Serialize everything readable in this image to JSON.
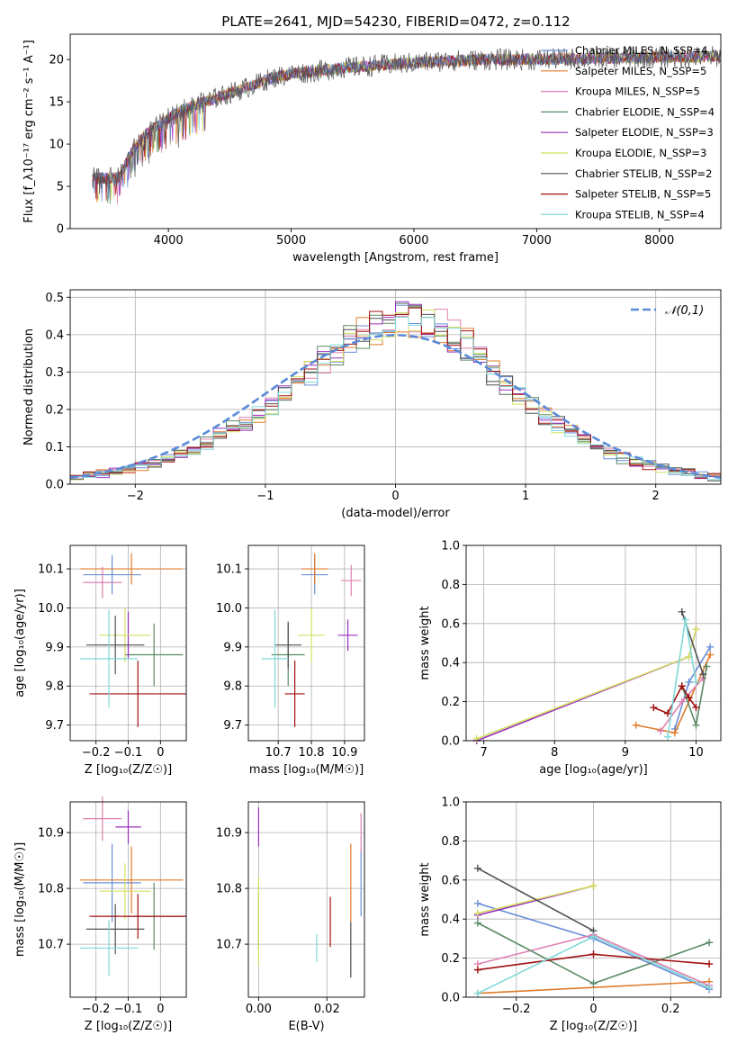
{
  "figure": {
    "title": "PLATE=2641, MJD=54230, FIBERID=0472, z=0.112"
  },
  "colors": {
    "chabrier_miles": "#6a8fd8",
    "salpeter_miles": "#e07b2a",
    "kroupa_miles": "#e080b0",
    "chabrier_elodie": "#5a8a64",
    "salpeter_elodie": "#9a30c0",
    "kroupa_elodie": "#d4e060",
    "chabrier_stelib": "#505050",
    "salpeter_stelib": "#a01010",
    "kroupa_stelib": "#80d8d8",
    "normal_curve": "#5a8ad8",
    "grid": "#b0b0b0"
  },
  "chart_data": [
    {
      "id": "spectrum",
      "type": "line",
      "title": "PLATE=2641, MJD=54230, FIBERID=0472, z=0.112",
      "xlabel": "wavelength [Angstrom, rest frame]",
      "ylabel": "Flux [f_λ10⁻¹⁷ erg cm⁻² s⁻¹ A⁻¹]",
      "xlim": [
        3200,
        8500
      ],
      "ylim": [
        0,
        23
      ],
      "xticks": [
        4000,
        5000,
        6000,
        7000,
        8000
      ],
      "yticks": [
        0,
        5,
        10,
        15,
        20
      ],
      "grid": false,
      "legend_position": "top-right",
      "legend": [
        "Chabrier MILES, N_SSP=4",
        "Salpeter MILES, N_SSP=5",
        "Kroupa MILES, N_SSP=5",
        "Chabrier ELODIE, N_SSP=4",
        "Salpeter ELODIE, N_SSP=3",
        "Kroupa ELODIE, N_SSP=3",
        "Chabrier STELIB, N_SSP=2",
        "Salpeter STELIB, N_SSP=5",
        "Kroupa STELIB, N_SSP=4"
      ],
      "continuum": {
        "x": [
          3380,
          3600,
          3700,
          3800,
          3900,
          4000,
          4100,
          4200,
          4300,
          4400,
          4500,
          4600,
          4700,
          4800,
          4900,
          5000,
          5200,
          5400,
          5600,
          5800,
          6000,
          6200,
          6400,
          6600,
          6800,
          7000,
          7200,
          7400,
          7600,
          7800,
          8000,
          8300,
          8500
        ],
        "y": [
          6.0,
          6.0,
          9.0,
          11.0,
          12.0,
          13.0,
          14.0,
          14.5,
          15.0,
          15.5,
          16.0,
          16.5,
          17.0,
          17.6,
          18.0,
          18.3,
          18.6,
          19.0,
          19.2,
          19.4,
          19.6,
          19.8,
          19.9,
          20.0,
          20.0,
          20.0,
          20.1,
          20.1,
          20.2,
          20.2,
          20.3,
          20.3,
          20.4
        ]
      }
    },
    {
      "id": "residuals",
      "type": "histogram",
      "xlabel": "(data-model)/error",
      "ylabel": "Normed distribution",
      "xlim": [
        -2.5,
        2.5
      ],
      "ylim": [
        0,
        0.52
      ],
      "xticks": [
        -2,
        -1,
        0,
        1,
        2
      ],
      "yticks": [
        0.0,
        0.1,
        0.2,
        0.3,
        0.4,
        0.5
      ],
      "grid": true,
      "legend_position": "top-right",
      "legend": [
        "𝒩(0,1)"
      ],
      "bins": {
        "start": -2.5,
        "width": 0.1,
        "count": 50
      },
      "base_density": [
        0.02,
        0.025,
        0.03,
        0.035,
        0.04,
        0.05,
        0.058,
        0.068,
        0.08,
        0.09,
        0.11,
        0.13,
        0.15,
        0.16,
        0.19,
        0.21,
        0.24,
        0.27,
        0.3,
        0.33,
        0.36,
        0.38,
        0.4,
        0.42,
        0.43,
        0.44,
        0.44,
        0.43,
        0.42,
        0.4,
        0.37,
        0.34,
        0.3,
        0.27,
        0.24,
        0.21,
        0.18,
        0.16,
        0.14,
        0.12,
        0.1,
        0.085,
        0.07,
        0.06,
        0.05,
        0.042,
        0.035,
        0.03,
        0.025,
        0.02
      ]
    },
    {
      "id": "age-vs-Z",
      "type": "errorbar",
      "xlabel": "Z [log₁₀(Z/Z☉)]",
      "ylabel": "age  [log₁₀(age/yr)]",
      "xlim": [
        -0.28,
        0.08
      ],
      "ylim": [
        9.66,
        10.16
      ],
      "xticks": [
        -0.2,
        -0.1,
        0.0
      ],
      "yticks": [
        9.7,
        9.8,
        9.9,
        10.0,
        10.1
      ],
      "grid": true,
      "points": [
        {
          "x": -0.15,
          "xerr": 0.09,
          "y": 10.085,
          "yerr": 0.05
        },
        {
          "x": -0.09,
          "xerr": 0.16,
          "y": 10.1,
          "yerr": 0.04
        },
        {
          "x": -0.18,
          "xerr": 0.06,
          "y": 10.065,
          "yerr": 0.04
        },
        {
          "x": -0.02,
          "xerr": 0.09,
          "y": 9.88,
          "yerr": 0.08
        },
        {
          "x": -0.1,
          "xerr": 0.0,
          "y": 9.93,
          "yerr": 0.06
        },
        {
          "x": -0.11,
          "xerr": 0.08,
          "y": 9.93,
          "yerr": 0.07
        },
        {
          "x": -0.14,
          "xerr": 0.09,
          "y": 9.905,
          "yerr": 0.075
        },
        {
          "x": -0.07,
          "xerr": 0.15,
          "y": 9.78,
          "yerr": 0.085
        },
        {
          "x": -0.16,
          "xerr": 0.09,
          "y": 9.87,
          "yerr": 0.125
        }
      ]
    },
    {
      "id": "age-vs-mass",
      "type": "errorbar",
      "xlabel": "mass [log₁₀(M/M☉)]",
      "ylabel": "",
      "xlim": [
        10.61,
        10.96
      ],
      "ylim": [
        9.66,
        10.16
      ],
      "xticks": [
        10.7,
        10.8,
        10.9
      ],
      "yticks": [
        9.7,
        9.8,
        9.9,
        10.0,
        10.1
      ],
      "grid": true,
      "points": [
        {
          "x": 10.81,
          "xerr": 0.04,
          "y": 10.085,
          "yerr": 0.05
        },
        {
          "x": 10.81,
          "xerr": 0.04,
          "y": 10.1,
          "yerr": 0.04
        },
        {
          "x": 10.92,
          "xerr": 0.03,
          "y": 10.07,
          "yerr": 0.04
        },
        {
          "x": 10.73,
          "xerr": 0.05,
          "y": 9.88,
          "yerr": 0.08
        },
        {
          "x": 10.91,
          "xerr": 0.03,
          "y": 9.93,
          "yerr": 0.04
        },
        {
          "x": 10.8,
          "xerr": 0.04,
          "y": 9.93,
          "yerr": 0.07
        },
        {
          "x": 10.73,
          "xerr": 0.04,
          "y": 9.905,
          "yerr": 0.06
        },
        {
          "x": 10.75,
          "xerr": 0.03,
          "y": 9.78,
          "yerr": 0.085
        },
        {
          "x": 10.69,
          "xerr": 0.04,
          "y": 9.87,
          "yerr": 0.125
        }
      ]
    },
    {
      "id": "weight-vs-age",
      "type": "line",
      "xlabel": "age  [log₁₀(age/yr)]",
      "ylabel": "mass weight",
      "xlim": [
        6.75,
        10.35
      ],
      "ylim": [
        0,
        1.0
      ],
      "xticks": [
        7,
        8,
        9,
        10
      ],
      "yticks": [
        0.0,
        0.2,
        0.4,
        0.6,
        0.8,
        1.0
      ],
      "grid": true,
      "series": [
        {
          "x": [
            9.7,
            9.9,
            10.2
          ],
          "y": [
            0.06,
            0.3,
            0.48
          ]
        },
        {
          "x": [
            9.15,
            9.7,
            10.2
          ],
          "y": [
            0.08,
            0.04,
            0.44
          ]
        },
        {
          "x": [
            9.5,
            9.8,
            10.1
          ],
          "y": [
            0.05,
            0.2,
            0.32
          ]
        },
        {
          "x": [
            9.8,
            10.0,
            10.15
          ],
          "y": [
            0.28,
            0.08,
            0.38
          ]
        },
        {
          "x": [
            6.9,
            9.9,
            10.0
          ],
          "y": [
            0.0,
            0.43,
            0.57
          ]
        },
        {
          "x": [
            6.9,
            9.9,
            10.0
          ],
          "y": [
            0.01,
            0.43,
            0.57
          ]
        },
        {
          "x": [
            9.8,
            10.1
          ],
          "y": [
            0.66,
            0.34
          ]
        },
        {
          "x": [
            9.4,
            9.6,
            9.8,
            9.9,
            10.0
          ],
          "y": [
            0.17,
            0.14,
            0.28,
            0.22,
            0.17
          ]
        },
        {
          "x": [
            9.6,
            9.85,
            10.0
          ],
          "y": [
            0.02,
            0.62,
            0.3
          ]
        }
      ]
    },
    {
      "id": "mass-vs-Z",
      "type": "errorbar",
      "xlabel": "Z [log₁₀(Z/Z☉)]",
      "ylabel": "mass [log₁₀(M/M☉)]",
      "xlim": [
        -0.28,
        0.08
      ],
      "ylim": [
        10.605,
        10.955
      ],
      "xticks": [
        -0.2,
        -0.1,
        0.0
      ],
      "yticks": [
        10.7,
        10.8,
        10.9
      ],
      "grid": true,
      "points": [
        {
          "x": -0.15,
          "xerr": 0.09,
          "y": 10.81,
          "yerr": 0.07
        },
        {
          "x": -0.09,
          "xerr": 0.16,
          "y": 10.815,
          "yerr": 0.06
        },
        {
          "x": -0.18,
          "xerr": 0.06,
          "y": 10.925,
          "yerr": 0.04
        },
        {
          "x": -0.02,
          "xerr": 0.09,
          "y": 10.75,
          "yerr": 0.06
        },
        {
          "x": -0.1,
          "xerr": 0.04,
          "y": 10.91,
          "yerr": 0.03
        },
        {
          "x": -0.11,
          "xerr": 0.08,
          "y": 10.795,
          "yerr": 0.05
        },
        {
          "x": -0.14,
          "xerr": 0.09,
          "y": 10.727,
          "yerr": 0.045
        },
        {
          "x": -0.07,
          "xerr": 0.15,
          "y": 10.75,
          "yerr": 0.04
        },
        {
          "x": -0.16,
          "xerr": 0.09,
          "y": 10.693,
          "yerr": 0.05
        }
      ]
    },
    {
      "id": "mass-vs-EBV",
      "type": "errorbar",
      "xlabel": "E(B-V)",
      "ylabel": "",
      "xlim": [
        -0.003,
        0.031
      ],
      "ylim": [
        10.605,
        10.955
      ],
      "xticks": [
        0.0,
        0.02
      ],
      "yticks": [
        10.7,
        10.8,
        10.9
      ],
      "grid": true,
      "points": [
        {
          "x": 0.03,
          "xerr": 0.0,
          "y": 10.81,
          "yerr": 0.06
        },
        {
          "x": 0.027,
          "xerr": 0.0,
          "y": 10.81,
          "yerr": 0.07
        },
        {
          "x": 0.03,
          "xerr": 0.0,
          "y": 10.9,
          "yerr": 0.035
        },
        {
          "x": 0.0,
          "xerr": 0.0,
          "y": 10.75,
          "yerr": 0.06
        },
        {
          "x": 0.0,
          "xerr": 0.0,
          "y": 10.91,
          "yerr": 0.035
        },
        {
          "x": 0.0,
          "xerr": 0.0,
          "y": 10.74,
          "yerr": 0.08
        },
        {
          "x": 0.027,
          "xerr": 0.0,
          "y": 10.69,
          "yerr": 0.05
        },
        {
          "x": 0.021,
          "xerr": 0.0,
          "y": 10.74,
          "yerr": 0.045
        },
        {
          "x": 0.017,
          "xerr": 0.0,
          "y": 10.693,
          "yerr": 0.025
        }
      ]
    },
    {
      "id": "weight-vs-Z",
      "type": "line",
      "xlabel": "Z [log₁₀(Z/Z☉)]",
      "ylabel": "mass weight",
      "xlim": [
        -0.33,
        0.33
      ],
      "ylim": [
        0,
        1.0
      ],
      "xticks": [
        -0.2,
        0.0,
        0.2
      ],
      "yticks": [
        0.0,
        0.2,
        0.4,
        0.6,
        0.8,
        1.0
      ],
      "grid": true,
      "series": [
        {
          "x": [
            -0.3,
            0.0,
            0.3
          ],
          "y": [
            0.48,
            0.3,
            0.04
          ]
        },
        {
          "x": [
            -0.3,
            0.3
          ],
          "y": [
            0.02,
            0.08
          ]
        },
        {
          "x": [
            -0.3,
            0.0,
            0.3
          ],
          "y": [
            0.17,
            0.32,
            0.06
          ]
        },
        {
          "x": [
            -0.3,
            0.0,
            0.3
          ],
          "y": [
            0.38,
            0.07,
            0.28
          ]
        },
        {
          "x": [
            -0.3,
            0.0
          ],
          "y": [
            0.42,
            0.57
          ]
        },
        {
          "x": [
            -0.3,
            0.0
          ],
          "y": [
            0.43,
            0.57
          ]
        },
        {
          "x": [
            -0.3,
            0.0
          ],
          "y": [
            0.66,
            0.34
          ]
        },
        {
          "x": [
            -0.3,
            0.0,
            0.3
          ],
          "y": [
            0.14,
            0.22,
            0.17
          ]
        },
        {
          "x": [
            -0.3,
            0.0,
            0.3
          ],
          "y": [
            0.02,
            0.31,
            0.05
          ]
        }
      ]
    }
  ]
}
